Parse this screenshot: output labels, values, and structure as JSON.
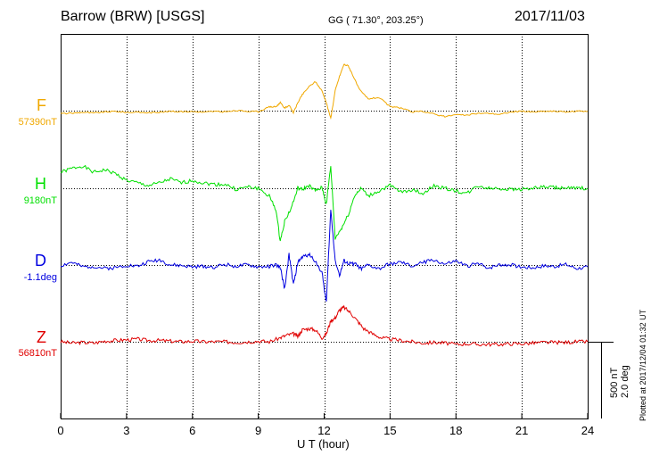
{
  "header": {
    "station": "Barrow (BRW)  [USGS]",
    "coords": "GG ( 71.30°, 203.25°)",
    "date": "2017/11/03"
  },
  "footer": {
    "plotted": "Plotted at 2017/12/04 01:32 UT",
    "scale_line1": "500 nT",
    "scale_line2": "2.0 deg"
  },
  "chart_data": {
    "type": "line",
    "xlabel": "U T (hour)",
    "xlim": [
      0,
      24
    ],
    "xticks": [
      0,
      3,
      6,
      9,
      12,
      15,
      18,
      21,
      24
    ],
    "xtick_labels": [
      "0",
      "3",
      "6",
      "9",
      "12",
      "15",
      "18",
      "21",
      "24"
    ],
    "grid": true,
    "scale_bar": {
      "nT": 500,
      "deg": 2.0
    },
    "series": [
      {
        "name": "F",
        "baseline_label": "57390nT",
        "baseline": 57390,
        "unit": "nT",
        "color": "#f0a800",
        "points": [
          [
            0,
            -22
          ],
          [
            0.5,
            -20
          ],
          [
            1,
            -12
          ],
          [
            1.5,
            -18
          ],
          [
            2,
            -10
          ],
          [
            2.5,
            -5
          ],
          [
            3,
            -13
          ],
          [
            3.5,
            -12
          ],
          [
            4,
            -16
          ],
          [
            4.5,
            -12
          ],
          [
            5,
            -5
          ],
          [
            5.5,
            -8
          ],
          [
            6,
            -6
          ],
          [
            6.5,
            -12
          ],
          [
            7,
            -5
          ],
          [
            7.5,
            -10
          ],
          [
            8,
            0
          ],
          [
            8.5,
            -3
          ],
          [
            9,
            -8
          ],
          [
            9.5,
            28
          ],
          [
            9.8,
            30
          ],
          [
            10,
            60
          ],
          [
            10.2,
            20
          ],
          [
            10.4,
            40
          ],
          [
            10.6,
            -15
          ],
          [
            10.8,
            60
          ],
          [
            11,
            120
          ],
          [
            11.3,
            180
          ],
          [
            11.6,
            220
          ],
          [
            11.9,
            150
          ],
          [
            12.1,
            60
          ],
          [
            12.3,
            -60
          ],
          [
            12.5,
            150
          ],
          [
            12.7,
            260
          ],
          [
            12.9,
            350
          ],
          [
            13.1,
            340
          ],
          [
            13.3,
            270
          ],
          [
            13.6,
            160
          ],
          [
            14,
            90
          ],
          [
            14.5,
            100
          ],
          [
            15,
            30
          ],
          [
            15.5,
            20
          ],
          [
            16,
            -10
          ],
          [
            16.5,
            -5
          ],
          [
            17,
            -25
          ],
          [
            17.5,
            -45
          ],
          [
            18,
            -30
          ],
          [
            18.5,
            -35
          ],
          [
            19,
            -20
          ],
          [
            19.5,
            -20
          ],
          [
            20,
            -28
          ],
          [
            20.5,
            -10
          ],
          [
            21,
            -5
          ],
          [
            21.5,
            -10
          ],
          [
            22,
            -5
          ],
          [
            22.5,
            -5
          ],
          [
            23,
            -10
          ],
          [
            23.5,
            -5
          ],
          [
            24,
            -5
          ]
        ]
      },
      {
        "name": "H",
        "baseline_label": "9180nT",
        "baseline": 9180,
        "unit": "nT",
        "color": "#00e000",
        "points": [
          [
            0,
            120
          ],
          [
            0.5,
            150
          ],
          [
            1,
            170
          ],
          [
            1.5,
            120
          ],
          [
            2,
            140
          ],
          [
            2.5,
            110
          ],
          [
            3,
            60
          ],
          [
            3.5,
            40
          ],
          [
            4,
            20
          ],
          [
            4.5,
            40
          ],
          [
            5,
            70
          ],
          [
            5.5,
            40
          ],
          [
            6,
            60
          ],
          [
            6.5,
            40
          ],
          [
            7,
            30
          ],
          [
            7.5,
            30
          ],
          [
            8,
            -10
          ],
          [
            8.5,
            10
          ],
          [
            9,
            0
          ],
          [
            9.5,
            -60
          ],
          [
            9.8,
            -160
          ],
          [
            10,
            -400
          ],
          [
            10.2,
            -250
          ],
          [
            10.5,
            -150
          ],
          [
            10.8,
            0
          ],
          [
            11,
            -10
          ],
          [
            11.3,
            20
          ],
          [
            11.6,
            -20
          ],
          [
            11.9,
            5
          ],
          [
            12.1,
            -120
          ],
          [
            12.3,
            170
          ],
          [
            12.5,
            -380
          ],
          [
            12.8,
            -300
          ],
          [
            13.1,
            -200
          ],
          [
            13.4,
            -50
          ],
          [
            13.7,
            0
          ],
          [
            14,
            -60
          ],
          [
            14.5,
            -20
          ],
          [
            15,
            20
          ],
          [
            15.5,
            -30
          ],
          [
            16,
            -10
          ],
          [
            16.5,
            -40
          ],
          [
            17,
            20
          ],
          [
            17.5,
            0
          ],
          [
            18,
            -20
          ],
          [
            18.5,
            -40
          ],
          [
            19,
            20
          ],
          [
            19.5,
            0
          ],
          [
            20,
            0
          ],
          [
            20.5,
            -10
          ],
          [
            21,
            -5
          ],
          [
            21.5,
            0
          ],
          [
            22,
            10
          ],
          [
            22.5,
            5
          ],
          [
            23,
            0
          ],
          [
            23.5,
            0
          ],
          [
            24,
            0
          ]
        ]
      },
      {
        "name": "D",
        "baseline_label": "-1.1deg",
        "baseline": -1.1,
        "unit": "deg",
        "color": "#0000e0",
        "points": [
          [
            0,
            -5
          ],
          [
            0.5,
            20
          ],
          [
            1,
            -15
          ],
          [
            1.5,
            -10
          ],
          [
            2,
            -25
          ],
          [
            2.5,
            -20
          ],
          [
            3,
            0
          ],
          [
            3.5,
            -10
          ],
          [
            4,
            25
          ],
          [
            4.5,
            40
          ],
          [
            5,
            0
          ],
          [
            5.5,
            -5
          ],
          [
            6,
            -15
          ],
          [
            6.5,
            -10
          ],
          [
            7,
            -15
          ],
          [
            7.5,
            5
          ],
          [
            8,
            -10
          ],
          [
            8.5,
            0
          ],
          [
            9,
            -15
          ],
          [
            9.5,
            -10
          ],
          [
            9.8,
            0
          ],
          [
            10,
            -20
          ],
          [
            10.2,
            -180
          ],
          [
            10.4,
            80
          ],
          [
            10.6,
            -150
          ],
          [
            10.8,
            20
          ],
          [
            11,
            60
          ],
          [
            11.3,
            80
          ],
          [
            11.6,
            30
          ],
          [
            11.9,
            -60
          ],
          [
            12.1,
            -280
          ],
          [
            12.3,
            420
          ],
          [
            12.5,
            40
          ],
          [
            12.7,
            -80
          ],
          [
            12.9,
            30
          ],
          [
            13.1,
            10
          ],
          [
            13.4,
            10
          ],
          [
            13.7,
            -30
          ],
          [
            14,
            0
          ],
          [
            14.5,
            -30
          ],
          [
            15,
            10
          ],
          [
            15.5,
            20
          ],
          [
            16,
            -10
          ],
          [
            16.5,
            20
          ],
          [
            17,
            40
          ],
          [
            17.5,
            5
          ],
          [
            18,
            30
          ],
          [
            18.5,
            -10
          ],
          [
            19,
            10
          ],
          [
            19.5,
            -20
          ],
          [
            20,
            5
          ],
          [
            20.5,
            0
          ],
          [
            21,
            -15
          ],
          [
            21.5,
            -20
          ],
          [
            22,
            -5
          ],
          [
            22.5,
            -10
          ],
          [
            23,
            5
          ],
          [
            23.5,
            -25
          ],
          [
            24,
            -15
          ]
        ]
      },
      {
        "name": "Z",
        "baseline_label": "56810nT",
        "baseline": 56810,
        "unit": "nT",
        "color": "#e00000",
        "points": [
          [
            0,
            0
          ],
          [
            0.5,
            -10
          ],
          [
            1,
            -5
          ],
          [
            1.5,
            -10
          ],
          [
            2,
            5
          ],
          [
            2.5,
            10
          ],
          [
            3,
            15
          ],
          [
            3.5,
            20
          ],
          [
            4,
            10
          ],
          [
            4.5,
            10
          ],
          [
            5,
            5
          ],
          [
            5.5,
            0
          ],
          [
            6,
            5
          ],
          [
            6.5,
            0
          ],
          [
            7,
            0
          ],
          [
            7.5,
            0
          ],
          [
            8,
            -5
          ],
          [
            8.5,
            0
          ],
          [
            9,
            5
          ],
          [
            9.5,
            0
          ],
          [
            10,
            30
          ],
          [
            10.3,
            50
          ],
          [
            10.6,
            60
          ],
          [
            10.8,
            40
          ],
          [
            11,
            90
          ],
          [
            11.3,
            100
          ],
          [
            11.6,
            90
          ],
          [
            11.9,
            30
          ],
          [
            12.1,
            60
          ],
          [
            12.3,
            160
          ],
          [
            12.5,
            180
          ],
          [
            12.7,
            240
          ],
          [
            12.9,
            260
          ],
          [
            13.2,
            220
          ],
          [
            13.5,
            160
          ],
          [
            13.8,
            100
          ],
          [
            14.2,
            60
          ],
          [
            14.6,
            30
          ],
          [
            15,
            20
          ],
          [
            15.5,
            10
          ],
          [
            16,
            0
          ],
          [
            16.5,
            -10
          ],
          [
            17,
            -5
          ],
          [
            17.5,
            -10
          ],
          [
            18,
            -20
          ],
          [
            18.5,
            -15
          ],
          [
            19,
            -20
          ],
          [
            19.5,
            -20
          ],
          [
            20,
            -20
          ],
          [
            20.5,
            -15
          ],
          [
            21,
            -15
          ],
          [
            21.5,
            -10
          ],
          [
            22,
            -5
          ],
          [
            22.5,
            -5
          ],
          [
            23,
            -5
          ],
          [
            23.5,
            0
          ],
          [
            24,
            0
          ]
        ]
      }
    ]
  }
}
